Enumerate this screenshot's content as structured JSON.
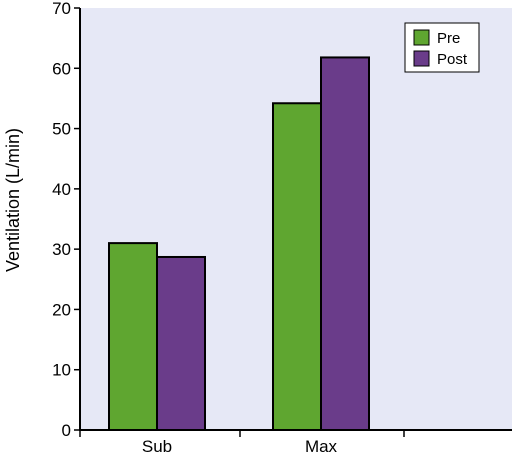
{
  "chart_data": {
    "type": "bar",
    "categories": [
      "Sub",
      "Max"
    ],
    "series": [
      {
        "name": "Pre",
        "values": [
          31,
          54.2
        ],
        "color": "#5fa630"
      },
      {
        "name": "Post",
        "values": [
          28.7,
          61.8
        ],
        "color": "#6a3c8a"
      }
    ],
    "xlabel": "",
    "ylabel": "Ventilation (L/min)",
    "ylim": [
      0,
      70
    ],
    "yticks": [
      0,
      10,
      20,
      30,
      40,
      50,
      60,
      70
    ],
    "grid": false,
    "legend_position": "top-right",
    "plot_background": "#e6e8f6"
  }
}
